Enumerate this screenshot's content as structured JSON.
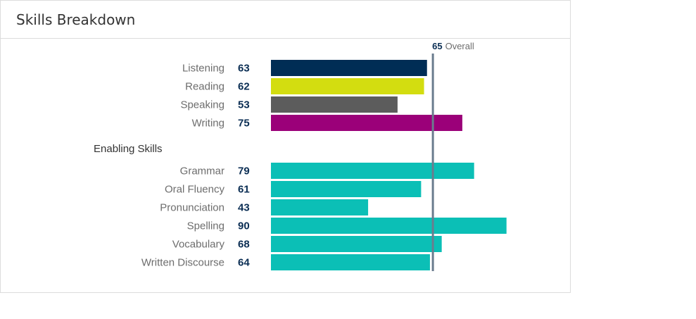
{
  "panel": {
    "title": "Skills Breakdown"
  },
  "chart_data": {
    "type": "bar",
    "orientation": "horizontal",
    "xlim": [
      10,
      90
    ],
    "overall": {
      "value": 65,
      "label": "Overall"
    },
    "groups": [
      {
        "heading": "",
        "items": [
          {
            "label": "Listening",
            "value": 63,
            "color": "#002d55"
          },
          {
            "label": "Reading",
            "value": 62,
            "color": "#d3dd10"
          },
          {
            "label": "Speaking",
            "value": 53,
            "color": "#5c5c5c"
          },
          {
            "label": "Writing",
            "value": 75,
            "color": "#9b0079"
          }
        ]
      },
      {
        "heading": "Enabling Skills",
        "items": [
          {
            "label": "Grammar",
            "value": 79,
            "color": "#0bbfb6"
          },
          {
            "label": "Oral Fluency",
            "value": 61,
            "color": "#0bbfb6"
          },
          {
            "label": "Pronunciation",
            "value": 43,
            "color": "#0bbfb6"
          },
          {
            "label": "Spelling",
            "value": 90,
            "color": "#0bbfb6"
          },
          {
            "label": "Vocabulary",
            "value": 68,
            "color": "#0bbfb6"
          },
          {
            "label": "Written Discourse",
            "value": 64,
            "color": "#0bbfb6"
          }
        ]
      }
    ]
  }
}
